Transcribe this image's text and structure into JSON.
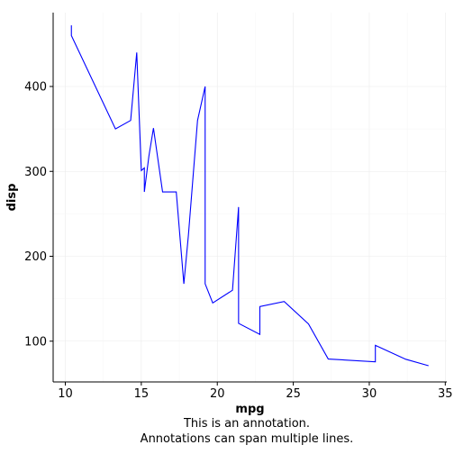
{
  "chart_data": {
    "type": "line",
    "xlabel": "mpg",
    "ylabel": "disp",
    "xlim": [
      9.2,
      35.1
    ],
    "ylim": [
      52,
      487
    ],
    "x_ticks": [
      10,
      15,
      20,
      25,
      30,
      35
    ],
    "y_ticks": [
      100,
      200,
      300,
      400
    ],
    "grid": true,
    "line_color": "#0000ff",
    "caption_lines": [
      "This is an annotation.",
      "Annotations can span multiple lines."
    ],
    "series": [
      {
        "x": [
          10.4,
          10.4,
          13.3,
          14.3,
          14.7,
          15.0,
          15.2,
          15.2,
          15.5,
          15.8,
          16.4,
          17.3,
          17.8,
          18.1,
          18.7,
          19.2,
          19.2,
          19.7,
          21.0,
          21.0,
          21.4,
          21.4,
          22.8,
          22.8,
          24.4,
          26.0,
          27.3,
          30.4,
          30.4,
          32.4,
          33.9
        ],
        "y": [
          472,
          460,
          350,
          360,
          440,
          301,
          304,
          275.8,
          318,
          351,
          275.8,
          275.8,
          167.6,
          225,
          360,
          400,
          167.6,
          145,
          160,
          160,
          258,
          121,
          108,
          140.8,
          146.7,
          120.3,
          79,
          75.7,
          95.1,
          78.7,
          71.1
        ]
      }
    ]
  }
}
